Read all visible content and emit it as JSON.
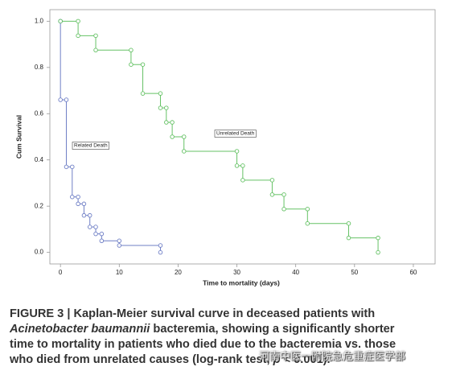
{
  "chart_data": {
    "type": "step",
    "xlabel": "Time to mortality (days)",
    "ylabel": "Cum Survival",
    "xlim": [
      -1.8,
      63.7
    ],
    "ylim": [
      -0.05,
      1.05
    ],
    "xticks": [
      0,
      10,
      20,
      30,
      40,
      50,
      60
    ],
    "yticks": [
      {
        "value": 0,
        "label": "0.0"
      },
      {
        "value": 0.2,
        "label": "0.2"
      },
      {
        "value": 0.4,
        "label": "0.4"
      },
      {
        "value": 0.6,
        "label": "0.6"
      },
      {
        "value": 0.8,
        "label": "0.8"
      },
      {
        "value": 1,
        "label": "1.0"
      }
    ],
    "series": [
      {
        "name": "Related Death",
        "color": "#6f7fc6",
        "x": [
          0,
          0,
          1,
          2,
          3,
          4,
          5,
          6,
          7,
          10,
          17
        ],
        "values": [
          1.0,
          0.66,
          0.37,
          0.24,
          0.21,
          0.16,
          0.11,
          0.08,
          0.05,
          0.03,
          0.0
        ]
      },
      {
        "name": "Unrelated Death",
        "color": "#66c266",
        "x": [
          0,
          3,
          6,
          12,
          14,
          17,
          18,
          19,
          21,
          30,
          31,
          36,
          38,
          42,
          49,
          54
        ],
        "values": [
          1.0,
          0.9375,
          0.875,
          0.8125,
          0.6875,
          0.625,
          0.5625,
          0.5,
          0.4375,
          0.375,
          0.3125,
          0.25,
          0.1875,
          0.125,
          0.0625,
          0.0
        ]
      }
    ]
  },
  "caption_lines": [
    [
      {
        "text": "FIGURE 3 | Kaplan-Meier survival curve in deceased patients with"
      }
    ],
    [
      {
        "text": "Acinetobacter baumannii",
        "italic": true
      },
      {
        "text": " bacteremia, showing a significantly shorter"
      }
    ],
    [
      {
        "text": "time to mortality in patients who died due to the bacteremia vs. those"
      }
    ],
    [
      {
        "text": "who died from unrelated causes (log-rank test, "
      },
      {
        "text": "p",
        "italic": true
      },
      {
        "text": " < 0.001)."
      }
    ]
  ],
  "watermark": "河南中医一附院急危重症医学部"
}
